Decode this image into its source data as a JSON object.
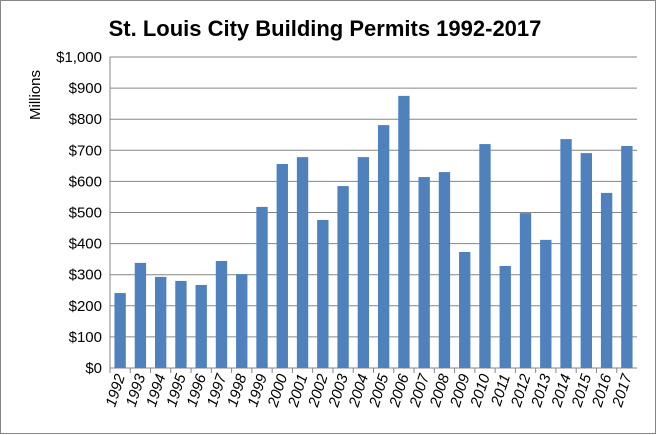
{
  "chart_data": {
    "type": "bar",
    "title": "St. Louis City Building Permits 1992-2017",
    "y_label": "Millions",
    "categories": [
      "1992",
      "1993",
      "1994",
      "1995",
      "1996",
      "1997",
      "1998",
      "1999",
      "2000",
      "2001",
      "2002",
      "2003",
      "2004",
      "2005",
      "2006",
      "2007",
      "2008",
      "2009",
      "2010",
      "2011",
      "2012",
      "2013",
      "2014",
      "2015",
      "2016",
      "2017"
    ],
    "values": [
      241,
      338,
      293,
      280,
      267,
      344,
      302,
      518,
      656,
      678,
      476,
      585,
      678,
      781,
      875,
      614,
      630,
      373,
      720,
      328,
      498,
      412,
      736,
      691,
      563,
      714
    ],
    "color": "#4f81bd",
    "ylim": [
      0,
      1000
    ],
    "yticks": [
      {
        "value": 0,
        "label": "$0"
      },
      {
        "value": 100,
        "label": "$100"
      },
      {
        "value": 200,
        "label": "$200"
      },
      {
        "value": 300,
        "label": "$300"
      },
      {
        "value": 400,
        "label": "$400"
      },
      {
        "value": 500,
        "label": "$500"
      },
      {
        "value": 600,
        "label": "$600"
      },
      {
        "value": 700,
        "label": "$700"
      },
      {
        "value": 800,
        "label": "$800"
      },
      {
        "value": 900,
        "label": "$900"
      },
      {
        "value": 1000,
        "label": "$1,000"
      }
    ],
    "grid": true
  }
}
